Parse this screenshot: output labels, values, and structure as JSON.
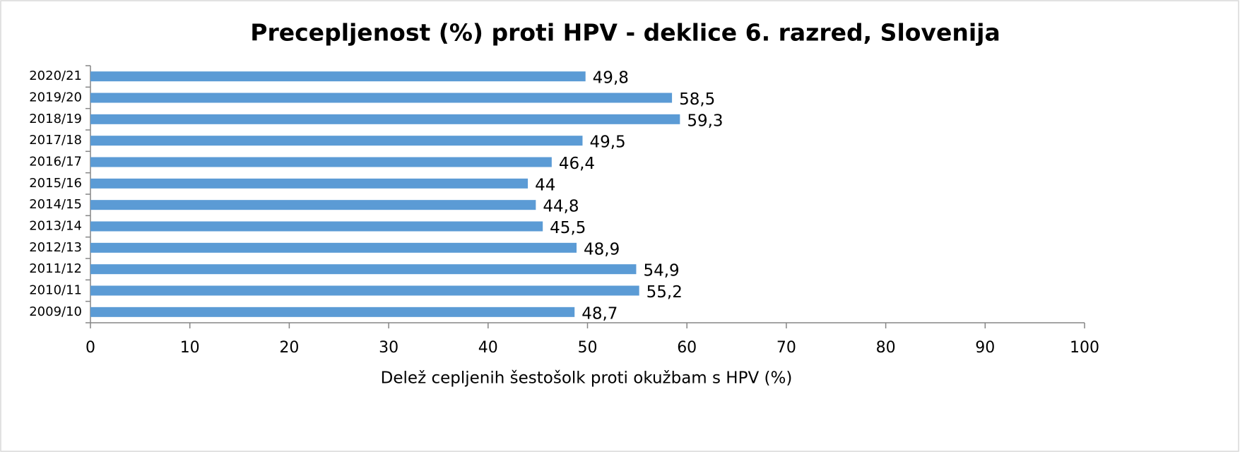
{
  "chart_data": {
    "type": "bar",
    "orientation": "horizontal",
    "title": "Precepljenost (%) proti HPV - deklice 6. razred, Slovenija",
    "x_label": "Delež cepljenih šestošolk proti okužbam s HPV (%)",
    "categories": [
      "2009/10",
      "2010/11",
      "2011/12",
      "2012/13",
      "2013/14",
      "2014/15",
      "2015/16",
      "2016/17",
      "2017/18",
      "2018/19",
      "2019/20",
      "2020/21"
    ],
    "values": [
      48.7,
      55.2,
      54.9,
      48.9,
      45.5,
      44.8,
      44,
      46.4,
      49.5,
      59.3,
      58.5,
      49.8
    ],
    "value_labels": [
      "48,7",
      "55,2",
      "54,9",
      "48,9",
      "45,5",
      "44,8",
      "44",
      "46,4",
      "49,5",
      "59,3",
      "58,5",
      "49,8"
    ],
    "color": "#5b9bd5",
    "xlim": [
      0,
      100
    ],
    "xticks": [
      0,
      10,
      20,
      30,
      40,
      50,
      60,
      70,
      80,
      90,
      100
    ],
    "grid": false
  }
}
